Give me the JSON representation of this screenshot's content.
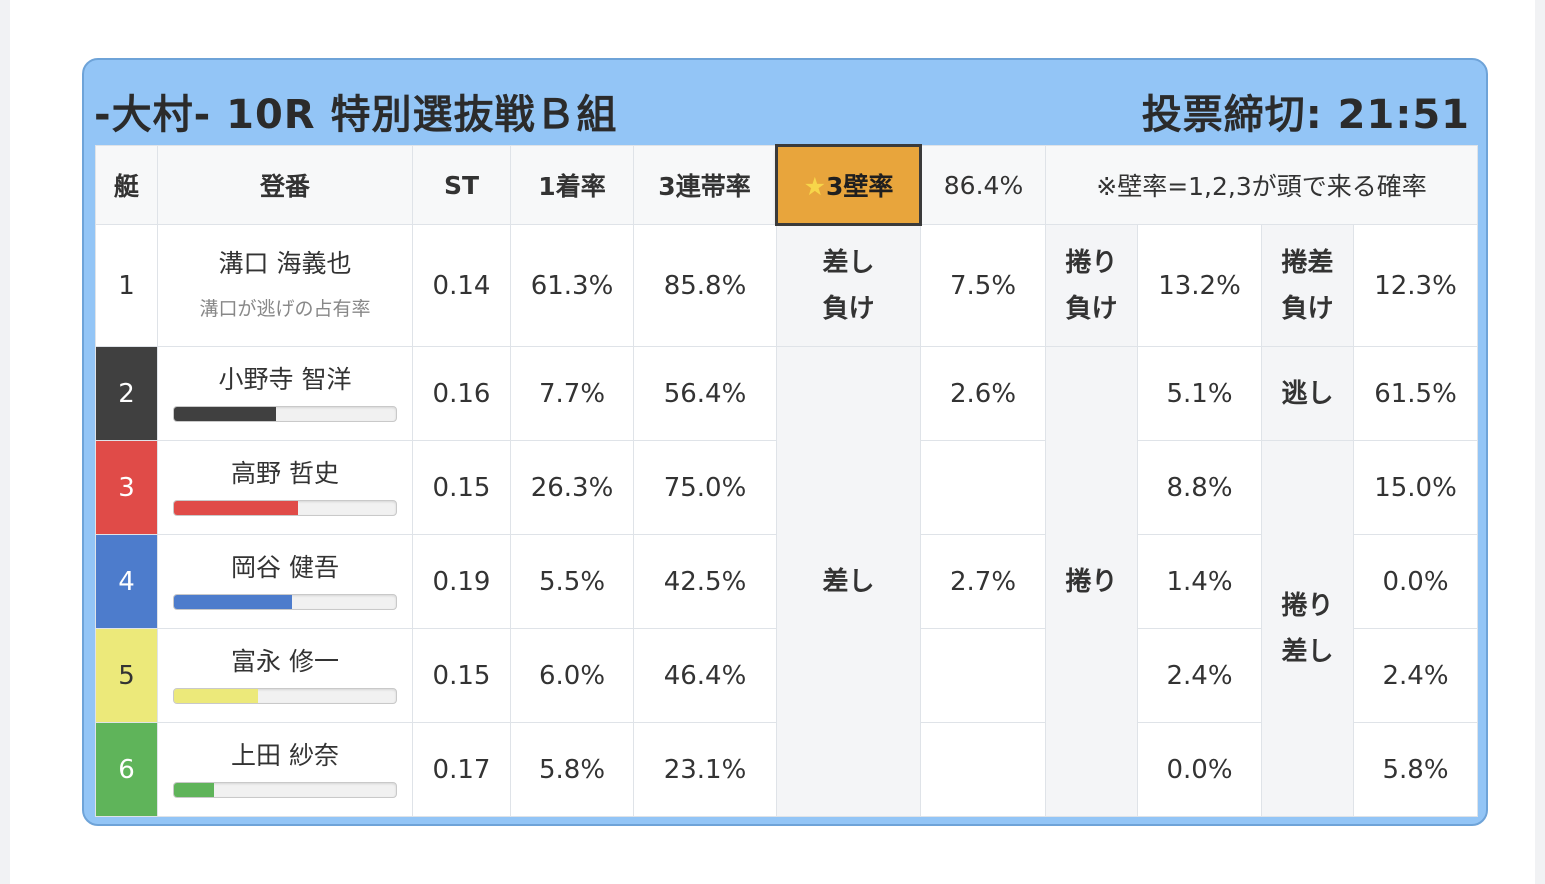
{
  "header": {
    "title": "-大村- 10R 特別選抜戦Ｂ組",
    "deadline": "投票締切: 21:51"
  },
  "table": {
    "columns": {
      "lane": "艇",
      "racer": "登番",
      "st": "ST",
      "win_rate": "1着率",
      "top3_rate": "3連帯率",
      "wall_label_star": "★",
      "wall_label": "3壁率",
      "wall_value": "86.4%",
      "note": "※壁率=1,2,3が頭で来る確率"
    },
    "rows": [
      {
        "lane": "1",
        "name": "溝口 海義也",
        "sub": "溝口が逃げの占有率",
        "st": "0.14",
        "win": "61.3%",
        "top3": "85.8%"
      },
      {
        "lane": "2",
        "name": "小野寺 智洋",
        "bar": 0.46,
        "bar_color": "#404040",
        "st": "0.16",
        "win": "7.7%",
        "top3": "56.4%"
      },
      {
        "lane": "3",
        "name": "高野 哲史",
        "bar": 0.56,
        "bar_color": "#e04b48",
        "st": "0.15",
        "win": "26.3%",
        "top3": "75.0%"
      },
      {
        "lane": "4",
        "name": "岡谷 健吾",
        "bar": 0.53,
        "bar_color": "#4d7ccc",
        "st": "0.19",
        "win": "5.5%",
        "top3": "42.5%"
      },
      {
        "lane": "5",
        "name": "富永 修一",
        "bar": 0.38,
        "bar_color": "#ece97a",
        "st": "0.15",
        "win": "6.0%",
        "top3": "46.4%"
      },
      {
        "lane": "6",
        "name": "上田 紗奈",
        "bar": 0.18,
        "bar_color": "#5fb45a",
        "st": "0.17",
        "win": "5.8%",
        "top3": "23.1%"
      }
    ],
    "row1_kimarite": {
      "sashi_make_1": "差し",
      "sashi_make_2": "負け",
      "sashi_make_value": "7.5%",
      "makuri_make_1": "捲り",
      "makuri_make_2": "負け",
      "makuri_make_value": "13.2%",
      "makurisashi_make_1": "捲差",
      "makurisashi_make_2": "負け",
      "makurisashi_make_value": "12.3%"
    },
    "kimarite": {
      "sashi_label": "差し",
      "sashi_values": [
        "2.6%",
        "",
        "2.7%",
        "",
        ""
      ],
      "makuri_label": "捲り",
      "makuri_values": [
        "5.1%",
        "8.8%",
        "1.4%",
        "2.4%",
        "0.0%"
      ],
      "nige_label": "逃し",
      "nige_value": "61.5%",
      "makurisashi_label_1": "捲り",
      "makurisashi_label_2": "差し",
      "makurisashi_values": [
        "15.0%",
        "0.0%",
        "2.4%",
        "5.8%"
      ]
    }
  }
}
